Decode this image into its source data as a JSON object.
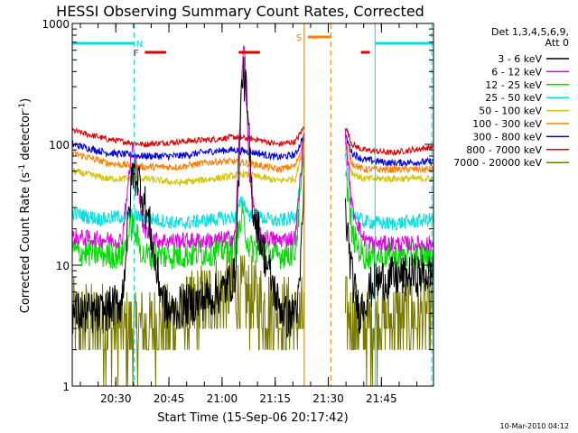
{
  "chart_data": {
    "type": "line",
    "title": "HESSI Observing Summary Count Rates, Corrected",
    "xlabel": "Start Time (15-Sep-06 20:17:42)",
    "ylabel": "Corrected Count Rate (s",
    "ylabel_sup1": "-1",
    "ylabel_mid": " detector",
    "ylabel_sup2": "-1",
    "ylabel_end": ")",
    "footer": "10-Mar-2010 04:12",
    "x_range_minutes": [
      0,
      102
    ],
    "x_start_clock": "20:17:42",
    "y_scale": "log",
    "ylim": [
      1,
      1000
    ],
    "y_ticks": [
      {
        "value": 1,
        "label": "1"
      },
      {
        "value": 10,
        "label": "10"
      },
      {
        "value": 100,
        "label": "100"
      },
      {
        "value": 1000,
        "label": "1000"
      }
    ],
    "x_ticks": [
      {
        "label": "20:30",
        "minute": 12.3
      },
      {
        "label": "20:45",
        "minute": 27.3
      },
      {
        "label": "21:00",
        "minute": 42.3
      },
      {
        "label": "21:15",
        "minute": 57.3
      },
      {
        "label": "21:30",
        "minute": 72.3
      },
      {
        "label": "21:45",
        "minute": 87.3
      }
    ],
    "legend": {
      "header1": "Det 1,3,4,5,6,9,",
      "header2": "Att 0",
      "entries": [
        {
          "label": "3 - 6 keV",
          "color": "#000000"
        },
        {
          "label": "6 - 12 keV",
          "color": "#e000e0"
        },
        {
          "label": "12 - 25 keV",
          "color": "#00dd00"
        },
        {
          "label": "25 - 50 keV",
          "color": "#00e0e0"
        },
        {
          "label": "50 - 100 keV",
          "color": "#d4c400"
        },
        {
          "label": "100 - 300 keV",
          "color": "#ff8000"
        },
        {
          "label": "300 - 800 keV",
          "color": "#0000e0"
        },
        {
          "label": "800 - 7000 keV",
          "color": "#e00000"
        },
        {
          "label": "7000 - 20000 keV",
          "color": "#7a7a00"
        }
      ]
    },
    "gaps_minutes": [
      [
        65.5,
        77.0
      ]
    ],
    "series": [
      {
        "name": "3 - 6 keV",
        "color": "#000000",
        "base": 4,
        "noise": 0.18,
        "knots": [
          [
            0,
            4
          ],
          [
            8,
            4
          ],
          [
            14,
            5
          ],
          [
            17,
            60
          ],
          [
            19,
            50
          ],
          [
            22,
            20
          ],
          [
            24,
            8
          ],
          [
            27,
            4
          ],
          [
            31,
            4.5
          ],
          [
            36,
            5
          ],
          [
            42,
            6
          ],
          [
            46,
            8
          ],
          [
            48,
            400
          ],
          [
            49,
            300
          ],
          [
            51,
            30
          ],
          [
            55,
            10
          ],
          [
            58,
            5
          ],
          [
            61,
            3.5
          ],
          [
            64,
            5
          ],
          [
            65.5,
            50
          ],
          [
            77,
            30
          ],
          [
            79,
            8
          ],
          [
            81,
            4
          ],
          [
            83,
            5.5
          ],
          [
            85,
            7
          ],
          [
            87,
            7.5
          ],
          [
            92,
            8
          ],
          [
            102,
            8.5
          ]
        ]
      },
      {
        "name": "6 - 12 keV",
        "color": "#e000e0",
        "base": 17,
        "noise": 0.07,
        "knots": [
          [
            0,
            17
          ],
          [
            14,
            16
          ],
          [
            17,
            100
          ],
          [
            18,
            70
          ],
          [
            20,
            20
          ],
          [
            24,
            16
          ],
          [
            30,
            16
          ],
          [
            40,
            16
          ],
          [
            46,
            17
          ],
          [
            47.5,
            200
          ],
          [
            48.5,
            800
          ],
          [
            50,
            60
          ],
          [
            52,
            18
          ],
          [
            58,
            16
          ],
          [
            63,
            17
          ],
          [
            65.5,
            130
          ],
          [
            77,
            130
          ],
          [
            79,
            30
          ],
          [
            82,
            17
          ],
          [
            85,
            15
          ],
          [
            102,
            15
          ]
        ]
      },
      {
        "name": "12 - 25 keV",
        "color": "#00dd00",
        "base": 12,
        "noise": 0.12,
        "knots": [
          [
            0,
            13
          ],
          [
            14,
            12
          ],
          [
            17,
            22
          ],
          [
            20,
            12
          ],
          [
            30,
            12
          ],
          [
            40,
            13
          ],
          [
            46,
            14
          ],
          [
            48,
            25
          ],
          [
            50,
            14
          ],
          [
            58,
            12
          ],
          [
            63,
            13
          ],
          [
            65.5,
            80
          ],
          [
            77,
            70
          ],
          [
            79,
            18
          ],
          [
            82,
            12
          ],
          [
            102,
            12
          ]
        ]
      },
      {
        "name": "25 - 50 keV",
        "color": "#00e0e0",
        "base": 25,
        "noise": 0.06,
        "knots": [
          [
            0,
            27
          ],
          [
            8,
            24
          ],
          [
            17,
            26
          ],
          [
            30,
            22
          ],
          [
            40,
            24
          ],
          [
            46,
            25
          ],
          [
            48,
            35
          ],
          [
            50,
            26
          ],
          [
            58,
            23
          ],
          [
            63,
            25
          ],
          [
            65.5,
            90
          ],
          [
            77,
            80
          ],
          [
            79,
            28
          ],
          [
            82,
            23
          ],
          [
            90,
            22
          ],
          [
            102,
            24
          ]
        ]
      },
      {
        "name": "50 - 100 keV",
        "color": "#d4c400",
        "base": 55,
        "noise": 0.03,
        "knots": [
          [
            0,
            60
          ],
          [
            10,
            52
          ],
          [
            20,
            52
          ],
          [
            30,
            48
          ],
          [
            40,
            52
          ],
          [
            46,
            55
          ],
          [
            48,
            57
          ],
          [
            58,
            50
          ],
          [
            63,
            52
          ],
          [
            65.5,
            100
          ],
          [
            77,
            95
          ],
          [
            79,
            58
          ],
          [
            82,
            52
          ],
          [
            102,
            52
          ]
        ]
      },
      {
        "name": "100 - 300 keV",
        "color": "#ff8000",
        "base": 70,
        "noise": 0.03,
        "knots": [
          [
            0,
            85
          ],
          [
            10,
            70
          ],
          [
            20,
            65
          ],
          [
            30,
            65
          ],
          [
            40,
            72
          ],
          [
            46,
            72
          ],
          [
            52,
            68
          ],
          [
            58,
            62
          ],
          [
            63,
            66
          ],
          [
            65.5,
            110
          ],
          [
            77,
            110
          ],
          [
            79,
            70
          ],
          [
            82,
            62
          ],
          [
            102,
            62
          ]
        ]
      },
      {
        "name": "300 - 800 keV",
        "color": "#0000e0",
        "base": 90,
        "noise": 0.03,
        "knots": [
          [
            0,
            100
          ],
          [
            10,
            85
          ],
          [
            20,
            80
          ],
          [
            30,
            80
          ],
          [
            40,
            88
          ],
          [
            46,
            90
          ],
          [
            52,
            85
          ],
          [
            58,
            78
          ],
          [
            63,
            82
          ],
          [
            65.5,
            120
          ],
          [
            77,
            120
          ],
          [
            79,
            85
          ],
          [
            82,
            75
          ],
          [
            90,
            70
          ],
          [
            102,
            72
          ]
        ]
      },
      {
        "name": "800 - 7000 keV",
        "color": "#e00000",
        "base": 115,
        "noise": 0.025,
        "knots": [
          [
            0,
            130
          ],
          [
            10,
            110
          ],
          [
            20,
            100
          ],
          [
            30,
            105
          ],
          [
            40,
            110
          ],
          [
            46,
            115
          ],
          [
            52,
            110
          ],
          [
            58,
            100
          ],
          [
            63,
            105
          ],
          [
            65.5,
            140
          ],
          [
            77,
            145
          ],
          [
            79,
            100
          ],
          [
            82,
            90
          ],
          [
            90,
            85
          ],
          [
            102,
            95
          ]
        ]
      },
      {
        "name": "7000 - 20000 keV",
        "color": "#7a7a00",
        "base": 3,
        "noise": 0.35,
        "knots": [
          [
            0,
            3.5
          ],
          [
            8,
            3.2
          ],
          [
            14,
            3
          ],
          [
            17,
            2.8
          ],
          [
            22,
            3
          ],
          [
            30,
            3.5
          ],
          [
            36,
            4.5
          ],
          [
            40,
            5.5
          ],
          [
            46,
            6
          ],
          [
            52,
            5
          ],
          [
            58,
            4
          ],
          [
            63,
            3.5
          ],
          [
            77,
            4
          ],
          [
            82,
            3
          ],
          [
            90,
            3.5
          ],
          [
            102,
            3.8
          ]
        ]
      }
    ],
    "annotations": {
      "mode_bars": [
        {
          "label": "N",
          "color": "#00e0e0",
          "x_start_minutes": 0,
          "x_end_minutes": 17.5,
          "label_minute": 19
        },
        {
          "label": "",
          "color": "#00e0e0",
          "x_start_minutes": 85.5,
          "x_end_minutes": 102,
          "label_minute": 0
        }
      ],
      "flag_bars": [
        {
          "label": "F",
          "color": "#e00000",
          "x_start_minutes": 20.5,
          "x_end_minutes": 26.5,
          "label_minute": 18
        },
        {
          "label": "",
          "color": "#e00000",
          "x_start_minutes": 47,
          "x_end_minutes": 53,
          "label_minute": 0
        },
        {
          "label": "",
          "color": "#e00000",
          "x_start_minutes": 81.5,
          "x_end_minutes": 84,
          "label_minute": 0
        }
      ],
      "saa_bars": [
        {
          "label": "S",
          "color": "#ff8000",
          "x_start_minutes": 66.5,
          "x_end_minutes": 73,
          "label_minute": 64
        }
      ],
      "vlines": [
        {
          "minute": 0,
          "color": "#00e0e0",
          "style": "solid"
        },
        {
          "minute": 17.5,
          "color": "#00e0e0",
          "style": "dashed"
        },
        {
          "minute": 65.5,
          "color": "#c88000",
          "style": "solid"
        },
        {
          "minute": 73,
          "color": "#ff8000",
          "style": "dashed"
        },
        {
          "minute": 85.5,
          "color": "#00e0e0",
          "style": "solid"
        },
        {
          "minute": 101.5,
          "color": "#00e0e0",
          "style": "dashed"
        }
      ]
    }
  }
}
